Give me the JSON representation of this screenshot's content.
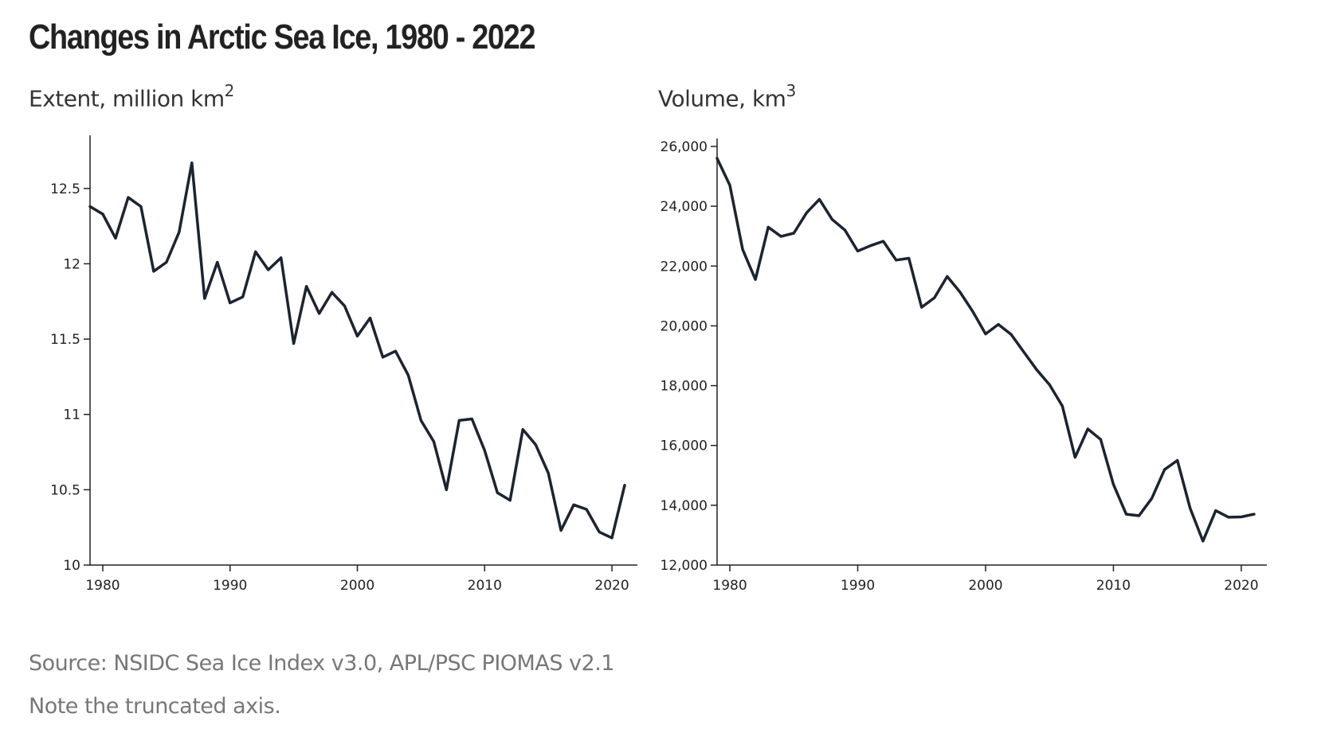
{
  "title": "Changes in Arctic Sea Ice, 1980 - 2022",
  "footnotes": {
    "source": "Source: NSIDC Sea Ice Index v3.0, APL/PSC PIOMAS v2.1",
    "note": "Note the truncated axis."
  },
  "colors": {
    "line": "#1b2430",
    "axis": "#222222",
    "footnote": "#777777"
  },
  "chart_data": [
    {
      "type": "line",
      "title": "Extent, million km",
      "title_superscript": "2",
      "xlabel": "",
      "ylabel": "Extent, million km2",
      "xlim": [
        1979,
        2022
      ],
      "ylim": [
        10,
        12.8
      ],
      "x_ticks": [
        1980,
        1990,
        2000,
        2010,
        2020
      ],
      "x_tick_labels": [
        "1980",
        "1990",
        "2000",
        "2010",
        "2020"
      ],
      "y_ticks": [
        10,
        10.5,
        11,
        11.5,
        12,
        12.5
      ],
      "y_tick_labels": [
        "10",
        "10.5",
        "11",
        "11.5",
        "12",
        "12.5"
      ],
      "grid": false,
      "series": [
        {
          "name": "Extent",
          "x": [
            1979,
            1980,
            1981,
            1982,
            1983,
            1984,
            1985,
            1986,
            1987,
            1988,
            1989,
            1990,
            1991,
            1992,
            1993,
            1994,
            1995,
            1996,
            1997,
            1998,
            1999,
            2000,
            2001,
            2002,
            2003,
            2004,
            2005,
            2006,
            2007,
            2008,
            2009,
            2010,
            2011,
            2012,
            2013,
            2014,
            2015,
            2016,
            2017,
            2018,
            2019,
            2020,
            2021
          ],
          "values": [
            12.38,
            12.33,
            12.17,
            12.44,
            12.38,
            11.95,
            12.01,
            12.21,
            12.67,
            11.77,
            12.01,
            11.74,
            11.78,
            12.08,
            11.96,
            12.04,
            11.47,
            11.85,
            11.67,
            11.81,
            11.72,
            11.52,
            11.64,
            11.38,
            11.42,
            11.26,
            10.96,
            10.82,
            10.5,
            10.96,
            10.97,
            10.76,
            10.48,
            10.43,
            10.9,
            10.8,
            10.61,
            10.23,
            10.4,
            10.37,
            10.22,
            10.18,
            10.53
          ]
        }
      ]
    },
    {
      "type": "line",
      "title": "Volume, km",
      "title_superscript": "3",
      "xlabel": "",
      "ylabel": "Volume, km3",
      "xlim": [
        1979,
        2022
      ],
      "ylim": [
        12000,
        26000
      ],
      "x_ticks": [
        1980,
        1990,
        2000,
        2010,
        2020
      ],
      "x_tick_labels": [
        "1980",
        "1990",
        "2000",
        "2010",
        "2020"
      ],
      "y_ticks": [
        12000,
        14000,
        16000,
        18000,
        20000,
        22000,
        24000,
        26000
      ],
      "y_tick_labels": [
        "12,000",
        "14,000",
        "16,000",
        "18,000",
        "20,000",
        "22,000",
        "24,000",
        "26,000"
      ],
      "grid": false,
      "series": [
        {
          "name": "Volume",
          "x": [
            1979,
            1980,
            1981,
            1982,
            1983,
            1984,
            1985,
            1986,
            1987,
            1988,
            1989,
            1990,
            1991,
            1992,
            1993,
            1994,
            1995,
            1996,
            1997,
            1998,
            1999,
            2000,
            2001,
            2002,
            2003,
            2004,
            2005,
            2006,
            2007,
            2008,
            2009,
            2010,
            2011,
            2012,
            2013,
            2014,
            2015,
            2016,
            2017,
            2018,
            2019,
            2020,
            2021
          ],
          "values": [
            25600,
            24700,
            22550,
            21550,
            23300,
            22990,
            23100,
            23780,
            24230,
            23560,
            23200,
            22500,
            22680,
            22830,
            22200,
            22260,
            20620,
            20940,
            21650,
            21130,
            20480,
            19730,
            20050,
            19710,
            19120,
            18530,
            18030,
            17320,
            15600,
            16550,
            16200,
            14700,
            13700,
            13650,
            14230,
            15190,
            15500,
            13900,
            12800,
            13820,
            13600,
            13610,
            13700
          ]
        }
      ]
    }
  ]
}
